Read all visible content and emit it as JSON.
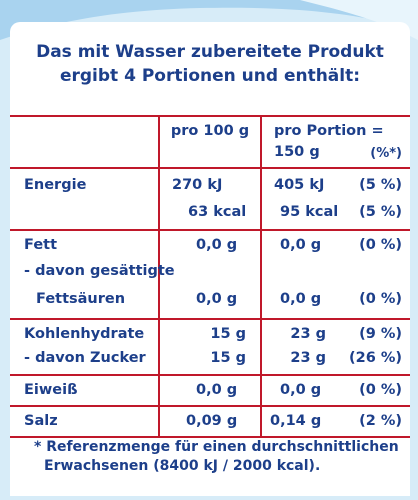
{
  "heading": {
    "line1": "Das mit Wasser zubereitete Produkt",
    "line2": "ergibt 4 Portionen und enthält:"
  },
  "columns": {
    "per100": "pro 100 g",
    "perPortion": "pro Portion =",
    "portionSize": "150 g",
    "percent": "(%*)"
  },
  "rows": {
    "energy": {
      "label": "Energie",
      "kj100": "270 kJ",
      "kjPortion": "405 kJ",
      "kjPct": "(5 %)",
      "kcal100": "63 kcal",
      "kcalPortion": "95 kcal",
      "kcalPct": "(5 %)"
    },
    "fat": {
      "label": "Fett",
      "v100": "0,0 g",
      "vPortion": "0,0 g",
      "pct": "(0 %)",
      "satLabel1": "- davon gesättigte",
      "satLabel2": "Fettsäuren",
      "sat100": "0,0 g",
      "satPortion": "0,0 g",
      "satPct": "(0 %)"
    },
    "carbs": {
      "label": "Kohlenhydrate",
      "v100": "15 g",
      "vPortion": "23 g",
      "pct": "(9 %)",
      "sugarLabel": "- davon Zucker",
      "sugar100": "15 g",
      "sugarPortion": "23 g",
      "sugarPct": "(26 %)"
    },
    "protein": {
      "label": "Eiweiß",
      "v100": "0,0 g",
      "vPortion": "0,0 g",
      "pct": "(0 %)"
    },
    "salt": {
      "label": "Salz",
      "v100": "0,09 g",
      "vPortion": "0,14 g",
      "pct": "(2 %)"
    }
  },
  "footnote": {
    "line1": "* Referenzmenge für einen durchschnittlichen",
    "line2": "Erwachsenen (8400 kJ / 2000 kcal)."
  },
  "colors": {
    "text": "#1d3f8a",
    "rule": "#c0182a",
    "background": "#cfe6f6"
  }
}
